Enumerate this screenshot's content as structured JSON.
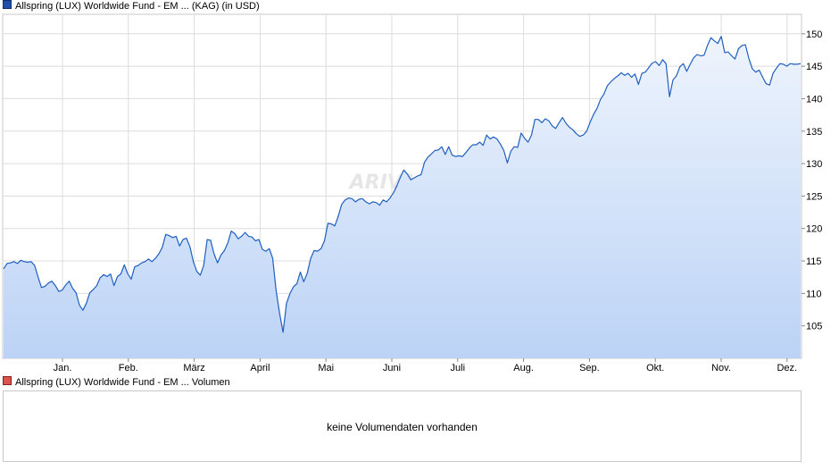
{
  "legend": {
    "price_label": "Allspring (LUX) Worldwide Fund - EM ... (KAG) (in USD)",
    "volume_label": "Allspring (LUX) Worldwide Fund - EM ... Volumen",
    "price_color": "#1f4fa8",
    "volume_color": "#d9534f"
  },
  "watermark": "ARIVA.DE",
  "volume": {
    "message": "keine Volumendaten vorhanden"
  },
  "chart_data": {
    "type": "area",
    "ylim": [
      100,
      153
    ],
    "yticks": [
      105,
      110,
      115,
      120,
      125,
      130,
      135,
      140,
      145,
      150
    ],
    "months": [
      "Jan.",
      "Feb.",
      "März",
      "April",
      "Mai",
      "Juni",
      "Juli",
      "Aug.",
      "Sep.",
      "Okt.",
      "Nov.",
      "Dez."
    ],
    "grid": true,
    "line_color": "#1f5fbf",
    "fill_top_color": "#eef4fd",
    "fill_bottom_color": "#bcd3f6",
    "series": [
      {
        "values": [
          113.8,
          114.6,
          114.7,
          114.9,
          114.6,
          115.1,
          114.9,
          114.8,
          114.9,
          114.3,
          112.5,
          110.9,
          111.1,
          111.6,
          111.9,
          111.2,
          110.3,
          110.5,
          111.3,
          111.9,
          110.8,
          110.1,
          108.2,
          107.4,
          108.5,
          110.1,
          110.6,
          111.2,
          112.4,
          112.9,
          112.6,
          113.0,
          111.2,
          112.6,
          113.0,
          114.4,
          113.0,
          112.2,
          114.1,
          114.3,
          114.7,
          114.9,
          115.3,
          114.9,
          115.4,
          116.1,
          117.1,
          119.1,
          118.9,
          118.6,
          118.8,
          117.3,
          118.3,
          118.5,
          117.2,
          114.9,
          113.4,
          112.8,
          114.3,
          118.3,
          118.2,
          116.1,
          114.7,
          115.9,
          116.6,
          117.8,
          119.6,
          119.2,
          118.4,
          118.8,
          119.4,
          118.8,
          118.7,
          118.1,
          118.3,
          116.8,
          116.5,
          116.9,
          115.4,
          110.4,
          106.9,
          104.0,
          108.5,
          110.0,
          111.0,
          111.5,
          113.3,
          111.8,
          113.1,
          115.4,
          116.6,
          116.5,
          116.9,
          118.1,
          120.8,
          120.7,
          120.4,
          121.9,
          123.7,
          124.4,
          124.7,
          124.6,
          124.1,
          124.5,
          124.6,
          124.1,
          123.8,
          124.1,
          124.0,
          123.6,
          124.4,
          124.1,
          124.7,
          125.5,
          126.6,
          127.9,
          129.0,
          128.4,
          127.5,
          127.8,
          128.1,
          128.3,
          130.2,
          131.0,
          131.5,
          132.0,
          132.1,
          132.6,
          131.4,
          132.6,
          131.3,
          131.1,
          131.2,
          131.1,
          131.7,
          132.4,
          132.9,
          132.9,
          133.3,
          132.8,
          134.4,
          133.8,
          134.1,
          133.8,
          133.0,
          132.0,
          130.1,
          131.9,
          132.6,
          132.5,
          134.7,
          133.9,
          133.3,
          134.4,
          136.8,
          136.8,
          136.3,
          136.9,
          136.6,
          135.8,
          135.4,
          136.3,
          137.1,
          136.2,
          135.6,
          135.2,
          134.6,
          134.2,
          134.4,
          135.0,
          136.4,
          137.6,
          138.5,
          139.9,
          140.7,
          142.0,
          142.6,
          143.1,
          143.5,
          144.0,
          143.6,
          143.9,
          143.3,
          143.8,
          142.2,
          143.9,
          144.1,
          144.8,
          145.5,
          145.7,
          145.1,
          146.0,
          145.4,
          140.3,
          142.9,
          143.5,
          144.9,
          145.4,
          144.2,
          145.3,
          146.3,
          146.8,
          146.6,
          146.7,
          148.2,
          149.4,
          148.9,
          148.5,
          149.6,
          147.1,
          147.2,
          146.6,
          146.1,
          147.7,
          148.2,
          148.3,
          146.2,
          144.6,
          144.1,
          144.4,
          143.3,
          142.3,
          142.1,
          143.9,
          144.7,
          145.4,
          145.3,
          145.0,
          145.4,
          145.3,
          145.3,
          145.4
        ]
      }
    ]
  }
}
